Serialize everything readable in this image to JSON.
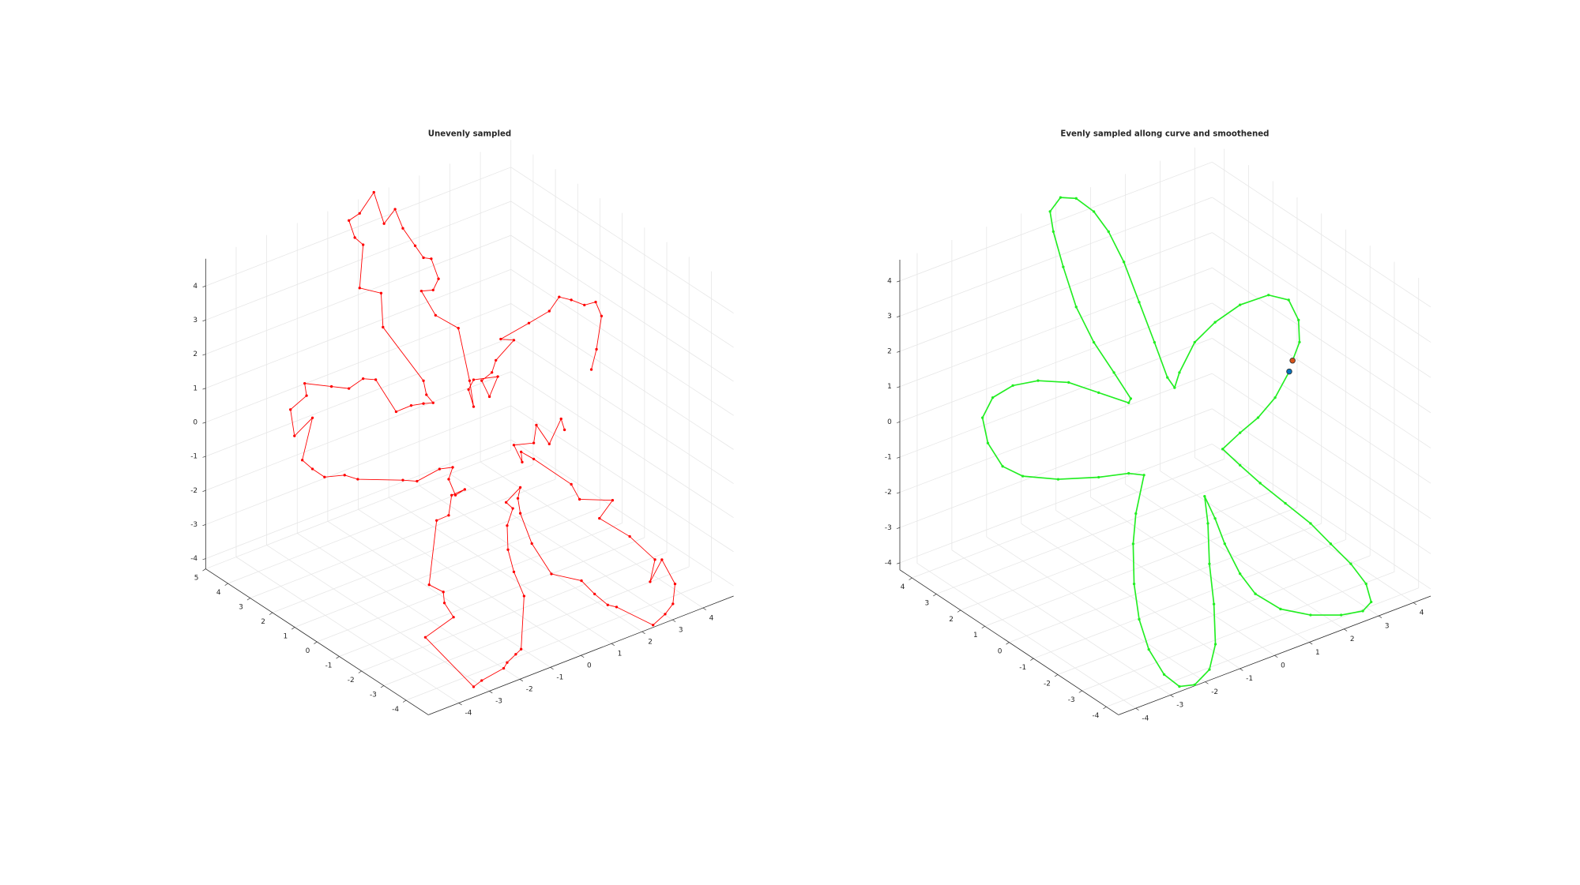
{
  "chart_data": [
    {
      "type": "line3d",
      "title": "Unevenly sampled",
      "xlim": [
        -5,
        5
      ],
      "ylim": [
        -5,
        5
      ],
      "zlim": [
        -4.3,
        4.8
      ],
      "xticks": [
        -4,
        -3,
        -2,
        -1,
        0,
        1,
        2,
        3,
        4
      ],
      "yticks": [
        -4,
        -3,
        -2,
        -1,
        0,
        1,
        2,
        3,
        4,
        5
      ],
      "zticks": [
        -4,
        -3,
        -2,
        -1,
        0,
        1,
        2,
        3,
        4
      ],
      "grid": true,
      "series": [
        {
          "color": "#ff0000",
          "x": [
            2.5,
            2.61,
            2.71,
            2.59,
            2.36,
            2.09,
            1.84,
            1.64,
            1.22,
            0.64,
            0.91,
            0.54,
            0.46,
            0.25,
            0.41,
            0.58,
            0.08,
            -0.02,
            0.08,
            0.0,
            -0.23,
            -0.7,
            -0.99,
            -0.75,
            -0.64,
            -0.79,
            -0.95,
            -1.12,
            -1.37,
            -1.53,
            -1.76,
            -1.97,
            -2.26,
            -2.48,
            -2.36,
            -2.19,
            -2.26,
            -1.82,
            -1.78,
            -0.95,
            -0.89,
            -0.75,
            -0.95,
            -1.2,
            -1.51,
            -1.93,
            -2.19,
            -2.48,
            -2.84,
            -3.39,
            -3.35,
            -3.68,
            -3.6,
            -3.23,
            -3.44,
            -3.23,
            -2.98,
            -2.57,
            -2.3,
            -1.37,
            -1.08,
            -0.62,
            -0.35,
            -0.43,
            -0.29,
            -0.1,
            -0.37,
            -0.43,
            -0.68,
            -0.83,
            -0.54,
            -0.52,
            -0.33,
            -0.91,
            0.08,
            0.25,
            0.7,
            0.77,
            0.95,
            1.06,
            1.12,
            0.91,
            0.79,
            0.77,
            0.89,
            0.75,
            1.04,
            0.99,
            1.04,
            1.28,
            1.68,
            2.3,
            2.57,
            2.84,
            3.02,
            3.77,
            4.02,
            4.18,
            4.22,
            3.95,
            3.71,
            3.81,
            3.29,
            2.67,
            2.94,
            2.26,
            2.09,
            1.32,
            1.06,
            1.08,
            0.91,
            1.32,
            1.37,
            1.64,
            1.88,
            1.95
          ],
          "y": [
            -2.04,
            -2.12,
            -2.21,
            -2.11,
            -1.92,
            -1.7,
            -1.5,
            -1.33,
            -0.99,
            -0.52,
            -0.74,
            -0.44,
            -0.37,
            -0.2,
            -0.33,
            -0.47,
            -0.07,
            0.02,
            -0.07,
            0.0,
            0.19,
            0.57,
            0.81,
            0.61,
            0.52,
            0.64,
            0.77,
            0.91,
            1.12,
            1.25,
            1.43,
            1.6,
            1.84,
            2.02,
            1.92,
            1.78,
            1.84,
            1.48,
            1.45,
            0.77,
            0.72,
            0.61,
            0.77,
            0.98,
            1.23,
            1.57,
            1.78,
            2.02,
            2.31,
            2.76,
            2.73,
            3.0,
            2.93,
            2.63,
            2.8,
            2.63,
            2.43,
            2.09,
            1.87,
            1.12,
            0.88,
            0.5,
            0.28,
            0.35,
            0.24,
            0.08,
            0.3,
            0.35,
            0.55,
            0.68,
            0.44,
            0.42,
            0.27,
            0.74,
            -0.07,
            -0.2,
            -0.57,
            -0.63,
            -0.77,
            -0.86,
            -0.91,
            -0.74,
            -0.64,
            -0.63,
            -0.72,
            -0.61,
            -0.85,
            -0.81,
            -0.85,
            -1.04,
            -1.37,
            -1.87,
            -2.09,
            -2.31,
            -2.46,
            -3.07,
            -3.27,
            -3.4,
            -3.44,
            -3.22,
            -3.02,
            -3.1,
            -2.68,
            -2.17,
            -2.39,
            -1.84,
            -1.7,
            -1.07,
            -0.86,
            -0.88,
            -0.74,
            -1.07,
            -1.12,
            -1.33,
            -1.53,
            -1.59
          ],
          "z": [
            1.95,
            2.54,
            3.52,
            3.93,
            3.84,
            3.99,
            4.08,
            3.66,
            3.31,
            2.84,
            2.81,
            2.22,
            1.86,
            1.62,
            1.15,
            1.74,
            1.65,
            1.36,
            0.86,
            1.62,
            3.16,
            3.54,
            4.25,
            4.28,
            4.61,
            5.2,
            5.23,
            5.58,
            6.09,
            6.65,
            6.23,
            7.15,
            6.53,
            6.32,
            5.82,
            5.61,
            4.34,
            4.19,
            3.19,
            1.62,
            1.21,
            0.97,
            0.95,
            0.89,
            0.71,
            1.65,
            1.68,
            1.39,
            1.45,
            1.54,
            1.18,
            0.77,
            0.0,
            0.53,
            -0.71,
            -0.97,
            -1.21,
            -1.15,
            -1.27,
            -1.3,
            -1.33,
            -0.97,
            -0.92,
            -1.27,
            -1.74,
            -1.57,
            -1.74,
            -2.33,
            -2.48,
            -4.37,
            -4.58,
            -4.9,
            -5.32,
            -5.91,
            -7.36,
            -7.18,
            -6.82,
            -6.65,
            -6.41,
            -6.26,
            -4.7,
            -3.99,
            -3.34,
            -2.63,
            -2.13,
            -1.95,
            -1.51,
            -1.83,
            -2.27,
            -3.16,
            -4.05,
            -4.25,
            -4.64,
            -4.96,
            -5.02,
            -5.55,
            -5.23,
            -4.93,
            -4.34,
            -3.63,
            -4.28,
            -3.63,
            -2.95,
            -2.42,
            -1.89,
            -1.86,
            -1.42,
            -0.68,
            -0.47,
            -0.77,
            -0.27,
            -0.21,
            0.32,
            -0.24,
            0.5,
            0.18
          ]
        }
      ]
    },
    {
      "type": "line3d",
      "title": "Evenly sampled allong curve and smoothened",
      "xlim": [
        -4.5,
        4.5
      ],
      "ylim": [
        -4.5,
        4.5
      ],
      "zlim": [
        -4.2,
        4.6
      ],
      "xticks": [
        -4,
        -3,
        -2,
        -1,
        0,
        1,
        2,
        3,
        4
      ],
      "yticks": [
        -4,
        -3,
        -2,
        -1,
        0,
        1,
        2,
        3,
        4
      ],
      "zticks": [
        -4,
        -3,
        -2,
        -1,
        0,
        1,
        2,
        3,
        4
      ],
      "grid": true,
      "series": [
        {
          "color": "#22ee22",
          "x": [
            2.27,
            2.01,
            1.7,
            1.37,
            1.05,
            1.37,
            1.74,
            2.2,
            2.66,
            3.03,
            3.4,
            3.68,
            3.77,
            3.62,
            3.22,
            2.66,
            2.11,
            1.65,
            1.37,
            1.09,
            0.91,
            0.72,
            0.78,
            0.81,
            0.89,
            0.92,
            0.81,
            0.54,
            0.26,
            -0.02,
            -0.3,
            -0.48,
            -0.57,
            -0.59,
            -0.54,
            -0.39,
            -0.67,
            -1.22,
            -1.96,
            -2.61,
            -2.98,
            -3.25,
            -3.35,
            -3.16,
            -2.79,
            -2.33,
            -1.77,
            -1.22,
            -0.67,
            -0.63,
            -0.94,
            -1.31,
            -1.63,
            -1.87,
            -2.05,
            -2.11,
            -1.92,
            -1.63,
            -1.31,
            -1.04,
            -0.76,
            -0.48,
            -0.2,
            0.04,
            0.17,
            0.26,
            0.54,
            0.91,
            1.37,
            1.89,
            2.26,
            2.44,
            2.46,
            2.33
          ],
          "y": [
            -1.86,
            -1.65,
            -1.39,
            -1.12,
            -0.86,
            -1.12,
            -1.42,
            -1.8,
            -2.18,
            -2.48,
            -2.78,
            -3.01,
            -3.09,
            -2.96,
            -2.64,
            -2.18,
            -1.73,
            -1.35,
            -1.12,
            -0.89,
            -0.75,
            -0.59,
            -0.64,
            -0.66,
            -0.73,
            -0.75,
            -0.66,
            -0.44,
            -0.21,
            0.02,
            0.25,
            0.39,
            0.47,
            0.48,
            0.44,
            0.32,
            0.55,
            1.0,
            1.61,
            2.14,
            2.44,
            2.66,
            2.74,
            2.59,
            2.29,
            1.91,
            1.45,
            1.0,
            0.55,
            0.52,
            0.77,
            1.07,
            1.34,
            1.53,
            1.68,
            1.73,
            1.57,
            1.34,
            1.07,
            0.85,
            0.62,
            0.39,
            0.16,
            -0.03,
            -0.14,
            -0.21,
            -0.44,
            -0.75,
            -1.12,
            -1.55,
            -1.85,
            -2.0,
            -2.01,
            -1.91
          ],
          "z": [
            1.8,
            1.06,
            0.49,
            0.06,
            -0.4,
            -0.86,
            -1.37,
            -1.94,
            -2.51,
            -3.09,
            -3.66,
            -4.23,
            -4.74,
            -5.0,
            -5.11,
            -5.11,
            -4.94,
            -4.51,
            -3.94,
            -3.09,
            -2.37,
            -1.74,
            -2.51,
            -3.66,
            -4.8,
            -5.94,
            -6.66,
            -7.09,
            -7.14,
            -6.8,
            -6.09,
            -5.23,
            -4.23,
            -3.09,
            -2.23,
            -1.14,
            -1.09,
            -1.2,
            -1.26,
            -1.17,
            -0.89,
            -0.23,
            0.49,
            1.06,
            1.4,
            1.54,
            1.49,
            1.2,
            0.91,
            1.03,
            1.77,
            2.63,
            3.63,
            4.77,
            5.77,
            6.34,
            6.74,
            6.71,
            6.34,
            5.77,
            4.91,
            3.77,
            2.63,
            1.63,
            1.34,
            1.77,
            2.63,
            3.2,
            3.69,
            3.97,
            3.83,
            3.26,
            2.63,
            2.11
          ]
        },
        {
          "color": "#d95319",
          "x": [
            2.33
          ],
          "y": [
            -1.91
          ],
          "z": [
            2.11
          ]
        },
        {
          "color": "#0072bd",
          "x": [
            2.27
          ],
          "y": [
            -1.86
          ],
          "z": [
            1.8
          ]
        }
      ]
    }
  ]
}
